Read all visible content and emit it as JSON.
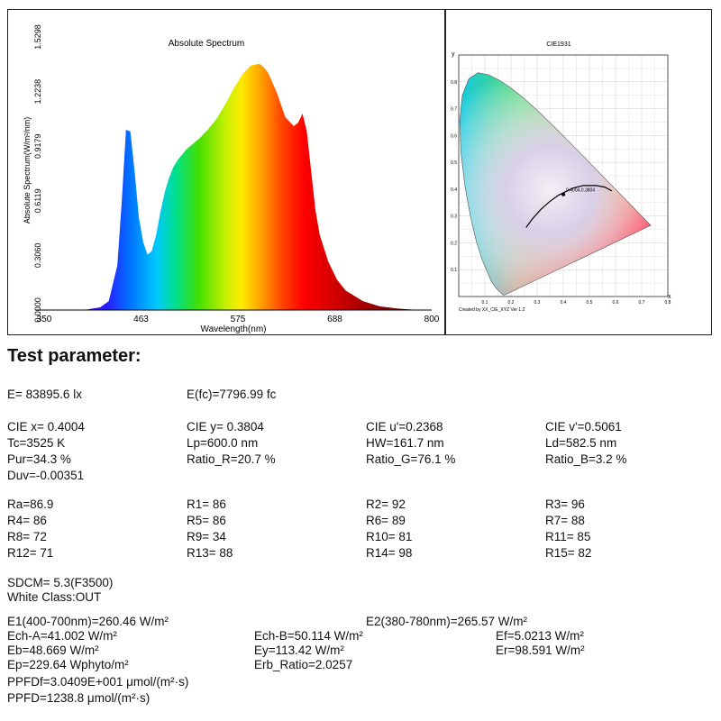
{
  "spectrum": {
    "title": "Absolute Spectrum",
    "ylabel": "Absolute Spectrum(W/m²/nm)",
    "xlabel": "Wavelength(nm)",
    "x_ticks": [
      "350",
      "463",
      "575",
      "688",
      "800"
    ],
    "y_ticks": [
      "0.0000",
      "0.3060",
      "0.6119",
      "0.9179",
      "1.2238",
      "1.5298"
    ]
  },
  "chart_data": [
    {
      "type": "area",
      "title": "Absolute Spectrum",
      "xlabel": "Wavelength(nm)",
      "ylabel": "Absolute Spectrum(W/m²/nm)",
      "xlim": [
        350,
        800
      ],
      "ylim": [
        0,
        1.5298
      ],
      "grid": false,
      "x": [
        350,
        380,
        400,
        415,
        425,
        435,
        440,
        445,
        450,
        455,
        460,
        465,
        470,
        475,
        480,
        485,
        490,
        495,
        500,
        505,
        510,
        515,
        520,
        530,
        540,
        550,
        560,
        570,
        580,
        590,
        600,
        605,
        610,
        620,
        630,
        640,
        645,
        650,
        655,
        660,
        665,
        670,
        680,
        690,
        700,
        720,
        740,
        760,
        780,
        800
      ],
      "y": [
        0,
        0,
        0.003,
        0.015,
        0.05,
        0.25,
        0.6,
        1.01,
        1.0,
        0.78,
        0.52,
        0.38,
        0.31,
        0.33,
        0.42,
        0.55,
        0.66,
        0.74,
        0.8,
        0.84,
        0.87,
        0.9,
        0.92,
        0.96,
        1.01,
        1.07,
        1.15,
        1.24,
        1.32,
        1.37,
        1.38,
        1.36,
        1.33,
        1.22,
        1.08,
        1.03,
        1.05,
        1.1,
        1.0,
        0.78,
        0.56,
        0.42,
        0.27,
        0.17,
        0.11,
        0.05,
        0.02,
        0.008,
        0.002,
        0
      ]
    },
    {
      "type": "scatter",
      "title": "CIE1931",
      "xlabel": "x",
      "ylabel": "y",
      "xlim": [
        0,
        0.8
      ],
      "ylim": [
        0,
        0.9
      ],
      "grid": true,
      "x_ticks": [
        "0.1",
        "0.2",
        "0.3",
        "0.4",
        "0.5",
        "0.6",
        "0.7",
        "0.8"
      ],
      "y_ticks": [
        "0.1",
        "0.2",
        "0.3",
        "0.4",
        "0.5",
        "0.6",
        "0.7",
        "0.8"
      ],
      "points": [
        {
          "x": 0.4004,
          "y": 0.3804
        }
      ],
      "planckian_locus": {
        "x": [
          0.258,
          0.2806,
          0.3135,
          0.3451,
          0.3805,
          0.4369,
          0.4765,
          0.5267,
          0.559,
          0.5857
        ],
        "y": [
          0.2574,
          0.2883,
          0.3237,
          0.3516,
          0.3768,
          0.4041,
          0.4137,
          0.4133,
          0.4078,
          0.3931
        ]
      },
      "point_label": "0.4004,0.3804",
      "footer": "Created by XX_CIE_XYZ Ver 1.2"
    }
  ],
  "params": {
    "heading": "Test parameter:",
    "E": "E=  83895.6 lx",
    "Efc": "E(fc)=7796.99 fc",
    "cie_x": "CIE x= 0.4004",
    "cie_y": "CIE y= 0.3804",
    "cie_u": "CIE u'=0.2368",
    "cie_v": "CIE v'=0.5061",
    "tc": "Tc=3525 K",
    "lp": "Lp=600.0 nm",
    "hw": "HW=161.7 nm",
    "ld": "Ld=582.5 nm",
    "pur": "Pur=34.3 %",
    "ratio_r": "Ratio_R=20.7 %",
    "ratio_g": "Ratio_G=76.1 %",
    "ratio_b": "Ratio_B=3.2 %",
    "duv": "Duv=-0.00351",
    "ra": "Ra=86.9",
    "r1": "R1= 86",
    "r2": "R2= 92",
    "r3": "R3= 96",
    "r4": "R4= 86",
    "r5": "R5= 86",
    "r6": "R6= 89",
    "r7": "R7= 88",
    "r8": "R8= 72",
    "r9": "R9= 34",
    "r10": "R10= 81",
    "r11": "R11= 85",
    "r12": "R12= 71",
    "r13": "R13= 88",
    "r14": "R14= 98",
    "r15": "R15= 82",
    "sdcm": "SDCM= 5.3(F3500)",
    "white_class": "White Class:OUT",
    "e1": "E1(400-700nm)=260.46 W/m²",
    "e2": "E2(380-780nm)=265.57 W/m²",
    "ech_a": "Ech-A=41.002 W/m²",
    "ech_b": "Ech-B=50.114 W/m²",
    "ef": "Ef=5.0213 W/m²",
    "eb": "Eb=48.669 W/m²",
    "ey": "Ey=113.42 W/m²",
    "er": "Er=98.591 W/m²",
    "ep": "Ep=229.64 Wphyto/m²",
    "erb": "Erb_Ratio=2.0257",
    "ppfdf": "PPFDf=3.0409E+001 μmol/(m²·s)",
    "ppfd": "PPFD=1238.8 μmol/(m²·s)"
  }
}
